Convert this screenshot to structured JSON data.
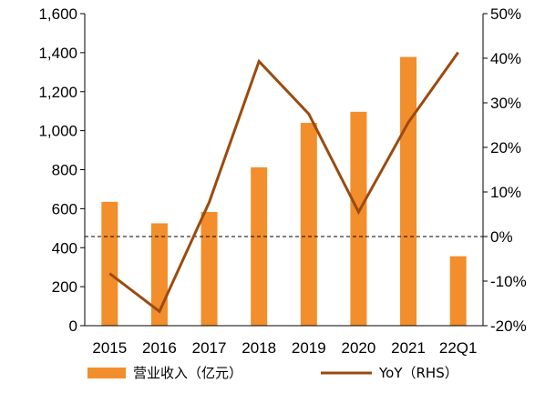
{
  "chart_data": {
    "type": "bar",
    "categories": [
      "2015",
      "2016",
      "2017",
      "2018",
      "2019",
      "2020",
      "2021",
      "22Q1"
    ],
    "series": [
      {
        "name": "营业收入（亿元）",
        "type": "bar",
        "axis": "left",
        "color": "#f28e2b",
        "values": [
          635,
          525,
          583,
          812,
          1040,
          1097,
          1378,
          356
        ]
      },
      {
        "name": "YoY（RHS）",
        "type": "line",
        "axis": "right",
        "color": "#9c4a0e",
        "values": [
          -8.3,
          -16.8,
          7.7,
          39.3,
          27.5,
          5.5,
          25.6,
          41.3
        ]
      }
    ],
    "y_left": {
      "min": 0,
      "max": 1600,
      "step": 200,
      "tick_labels": [
        "0",
        "200",
        "400",
        "600",
        "800",
        "1,000",
        "1,200",
        "1,400",
        "1,600"
      ]
    },
    "y_right": {
      "min": -20,
      "max": 50,
      "step": 10,
      "tick_labels": [
        "-20%",
        "-10%",
        "0%",
        "10%",
        "20%",
        "30%",
        "40%",
        "50%"
      ]
    },
    "reference_line": {
      "axis": "right",
      "value": 0,
      "style": "dashed"
    },
    "legend": {
      "position": "bottom",
      "items": [
        "营业收入（亿元）",
        "YoY（RHS）"
      ]
    },
    "grid": false
  }
}
